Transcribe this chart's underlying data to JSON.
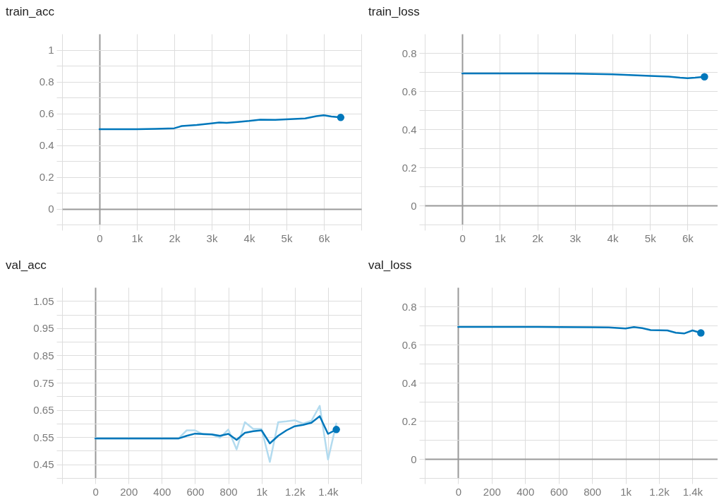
{
  "chart_data": [
    {
      "type": "line",
      "title": "train_acc",
      "grid": true,
      "xlim": [
        -1000,
        7000
      ],
      "ylim": [
        -0.1,
        1.1
      ],
      "xticks": [
        {
          "value": -1000,
          "label": null
        },
        0,
        {
          "value": 1000,
          "label": "1k"
        },
        {
          "value": 2000,
          "label": "2k"
        },
        {
          "value": 3000,
          "label": "3k"
        },
        {
          "value": 4000,
          "label": "4k"
        },
        {
          "value": 5000,
          "label": "5k"
        },
        {
          "value": 6000,
          "label": "6k"
        },
        {
          "value": 7000,
          "label": null
        }
      ],
      "yticks": [
        {
          "value": -0.1,
          "label": null
        },
        0,
        {
          "value": 0.1,
          "label": null
        },
        0.2,
        {
          "value": 0.3,
          "label": null
        },
        0.4,
        {
          "value": 0.5,
          "label": null
        },
        0.6,
        {
          "value": 0.7,
          "label": null
        },
        0.8,
        {
          "value": 0.9,
          "label": null
        },
        1
      ],
      "series": [
        {
          "color": "#0077bb",
          "x": [
            0,
            500,
            1000,
            1500,
            2000,
            2200,
            2600,
            3000,
            3200,
            3400,
            3700,
            4000,
            4300,
            4700,
            5000,
            5500,
            5800,
            6000,
            6200,
            6450
          ],
          "values": [
            0.5,
            0.5,
            0.5,
            0.502,
            0.506,
            0.52,
            0.527,
            0.537,
            0.542,
            0.54,
            0.546,
            0.552,
            0.56,
            0.559,
            0.562,
            0.568,
            0.582,
            0.588,
            0.58,
            0.574
          ]
        }
      ]
    },
    {
      "type": "line",
      "title": "train_loss",
      "grid": true,
      "xlim": [
        -1000,
        6800
      ],
      "ylim": [
        -0.1,
        0.9
      ],
      "xticks": [
        {
          "value": -1000,
          "label": null
        },
        0,
        {
          "value": 1000,
          "label": "1k"
        },
        {
          "value": 2000,
          "label": "2k"
        },
        {
          "value": 3000,
          "label": "3k"
        },
        {
          "value": 4000,
          "label": "4k"
        },
        {
          "value": 5000,
          "label": "5k"
        },
        {
          "value": 6000,
          "label": "6k"
        }
      ],
      "yticks": [
        {
          "value": -0.1,
          "label": null
        },
        0,
        {
          "value": 0.1,
          "label": null
        },
        0.2,
        {
          "value": 0.3,
          "label": null
        },
        0.4,
        {
          "value": 0.5,
          "label": null
        },
        0.6,
        {
          "value": 0.7,
          "label": null
        },
        0.8
      ],
      "series": [
        {
          "color": "#0077bb",
          "x": [
            0,
            1000,
            2000,
            3000,
            4000,
            5000,
            5500,
            5800,
            6000,
            6200,
            6450
          ],
          "values": [
            0.693,
            0.693,
            0.693,
            0.692,
            0.688,
            0.68,
            0.676,
            0.67,
            0.668,
            0.67,
            0.675
          ]
        }
      ]
    },
    {
      "type": "line",
      "title": "val_acc",
      "grid": true,
      "xlim": [
        -200,
        1600
      ],
      "ylim": [
        0.4,
        1.1
      ],
      "xticks": [
        {
          "value": -200,
          "label": null
        },
        0,
        200,
        400,
        600,
        800,
        {
          "value": 1000,
          "label": "1k"
        },
        {
          "value": 1200,
          "label": "1.2k"
        },
        {
          "value": 1400,
          "label": "1.4k"
        },
        {
          "value": 1600,
          "label": null
        }
      ],
      "yticks": [
        {
          "value": 0.4,
          "label": null
        },
        0.45,
        {
          "value": 0.5,
          "label": null
        },
        0.55,
        {
          "value": 0.6,
          "label": null
        },
        0.65,
        {
          "value": 0.7,
          "label": null
        },
        0.75,
        {
          "value": 0.8,
          "label": null
        },
        0.85,
        {
          "value": 0.9,
          "label": null
        },
        0.95,
        {
          "value": 1,
          "label": null
        },
        1.05
      ],
      "series": [
        {
          "color": "#b3dbef",
          "x": [
            0,
            500,
            550,
            600,
            650,
            700,
            750,
            800,
            850,
            900,
            950,
            1000,
            1050,
            1100,
            1150,
            1200,
            1250,
            1300,
            1350,
            1400,
            1450
          ],
          "values": [
            0.545,
            0.545,
            0.575,
            0.575,
            0.56,
            0.56,
            0.548,
            0.578,
            0.505,
            0.605,
            0.58,
            0.58,
            0.459,
            0.605,
            0.608,
            0.612,
            0.6,
            0.61,
            0.665,
            0.468,
            0.6
          ]
        },
        {
          "color": "#0077bb",
          "x": [
            0,
            500,
            550,
            600,
            700,
            750,
            800,
            850,
            900,
            950,
            1000,
            1050,
            1100,
            1150,
            1200,
            1250,
            1300,
            1350,
            1400,
            1450
          ],
          "values": [
            0.545,
            0.545,
            0.555,
            0.563,
            0.56,
            0.555,
            0.562,
            0.54,
            0.566,
            0.572,
            0.575,
            0.527,
            0.555,
            0.575,
            0.59,
            0.595,
            0.603,
            0.627,
            0.562,
            0.578
          ]
        }
      ]
    },
    {
      "type": "line",
      "title": "val_loss",
      "grid": true,
      "xlim": [
        -200,
        1550
      ],
      "ylim": [
        -0.1,
        0.9
      ],
      "xticks": [
        {
          "value": -200,
          "label": null
        },
        0,
        200,
        400,
        600,
        800,
        {
          "value": 1000,
          "label": "1k"
        },
        {
          "value": 1200,
          "label": "1.2k"
        },
        {
          "value": 1400,
          "label": "1.4k"
        }
      ],
      "yticks": [
        {
          "value": -0.1,
          "label": null
        },
        0,
        {
          "value": 0.1,
          "label": null
        },
        0.2,
        {
          "value": 0.3,
          "label": null
        },
        0.4,
        {
          "value": 0.5,
          "label": null
        },
        0.6,
        {
          "value": 0.7,
          "label": null
        },
        0.8
      ],
      "series": [
        {
          "color": "#0077bb",
          "x": [
            0,
            200,
            400,
            600,
            800,
            900,
            1000,
            1050,
            1100,
            1150,
            1250,
            1300,
            1350,
            1400,
            1450
          ],
          "values": [
            0.693,
            0.693,
            0.693,
            0.692,
            0.691,
            0.69,
            0.684,
            0.692,
            0.686,
            0.676,
            0.674,
            0.662,
            0.658,
            0.674,
            0.661
          ]
        }
      ]
    }
  ]
}
